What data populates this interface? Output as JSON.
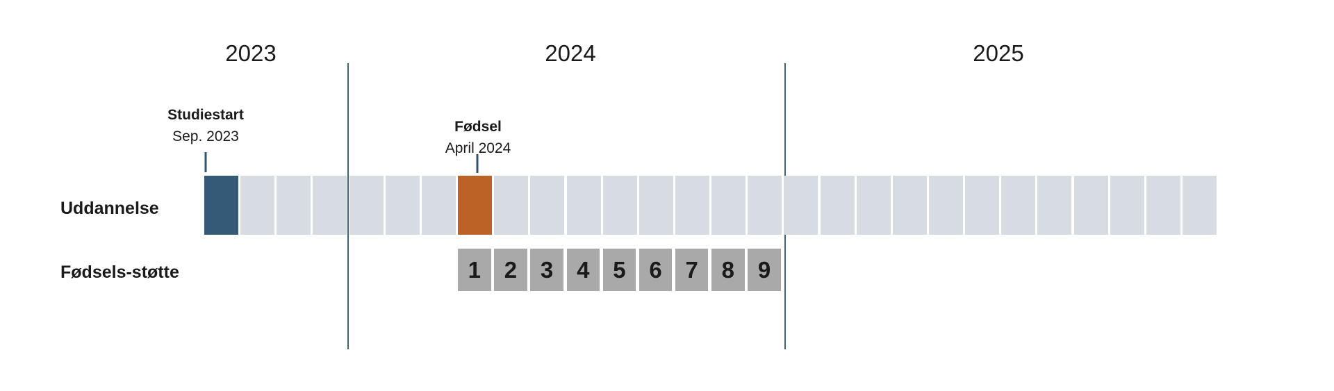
{
  "years": [
    {
      "label": "2023"
    },
    {
      "label": "2024"
    },
    {
      "label": "2025"
    }
  ],
  "annotations": [
    {
      "id": "studiestart",
      "title": "Studiestart",
      "subtitle": "Sep. 2023"
    },
    {
      "id": "foedsel",
      "title": "Fødsel",
      "subtitle": "April 2024"
    }
  ],
  "rows": [
    {
      "label": "Uddannelse",
      "cells": [
        {
          "type": "studiestart"
        },
        {
          "type": "plain"
        },
        {
          "type": "plain"
        },
        {
          "type": "plain"
        },
        {
          "type": "plain"
        },
        {
          "type": "plain"
        },
        {
          "type": "plain"
        },
        {
          "type": "foedsel"
        },
        {
          "type": "plain"
        },
        {
          "type": "plain"
        },
        {
          "type": "plain"
        },
        {
          "type": "plain"
        },
        {
          "type": "plain"
        },
        {
          "type": "plain"
        },
        {
          "type": "plain"
        },
        {
          "type": "plain"
        },
        {
          "type": "plain"
        },
        {
          "type": "plain"
        },
        {
          "type": "plain"
        },
        {
          "type": "plain"
        },
        {
          "type": "plain"
        },
        {
          "type": "plain"
        },
        {
          "type": "plain"
        },
        {
          "type": "plain"
        },
        {
          "type": "plain"
        },
        {
          "type": "plain"
        },
        {
          "type": "plain"
        },
        {
          "type": "plain"
        }
      ]
    },
    {
      "label": "Fødsels-støtte",
      "cells": [
        {
          "type": "support",
          "label": "1"
        },
        {
          "type": "support",
          "label": "2"
        },
        {
          "type": "support",
          "label": "3"
        },
        {
          "type": "support",
          "label": "4"
        },
        {
          "type": "support",
          "label": "5"
        },
        {
          "type": "support",
          "label": "6"
        },
        {
          "type": "support",
          "label": "7"
        },
        {
          "type": "support",
          "label": "8"
        },
        {
          "type": "support",
          "label": "9"
        }
      ]
    }
  ],
  "colors": {
    "studiestart_blue": "#345a78",
    "foedsel_orange": "#bc6227",
    "timeline_gray": "#d6dce2",
    "support_gray": "#a9a9a9",
    "divider_line": "#3f627c",
    "tick_mark": "#2e5571",
    "text": "#1a1a1a"
  }
}
